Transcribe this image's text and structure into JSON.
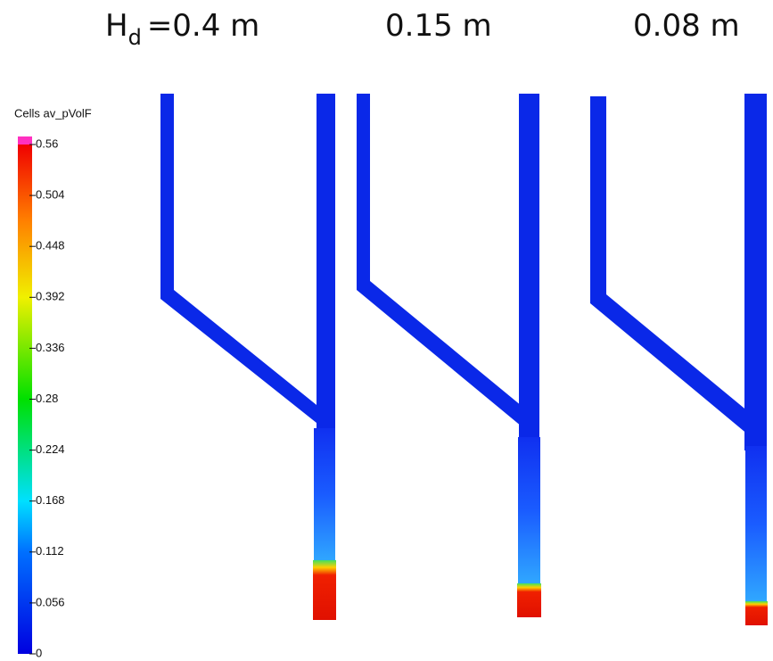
{
  "header": {
    "symbol": "H",
    "subscript": "d"
  },
  "panels": [
    {
      "title": "=0.4 m"
    },
    {
      "title": "0.15 m"
    },
    {
      "title": "0.08 m"
    }
  ],
  "colorbar": {
    "title": "Cells av_pVolF",
    "range": [
      0,
      0.56
    ],
    "ticks": [
      0.56,
      0.504,
      0.448,
      0.392,
      0.336,
      0.28,
      0.224,
      0.168,
      0.112,
      0.056,
      0
    ]
  }
}
